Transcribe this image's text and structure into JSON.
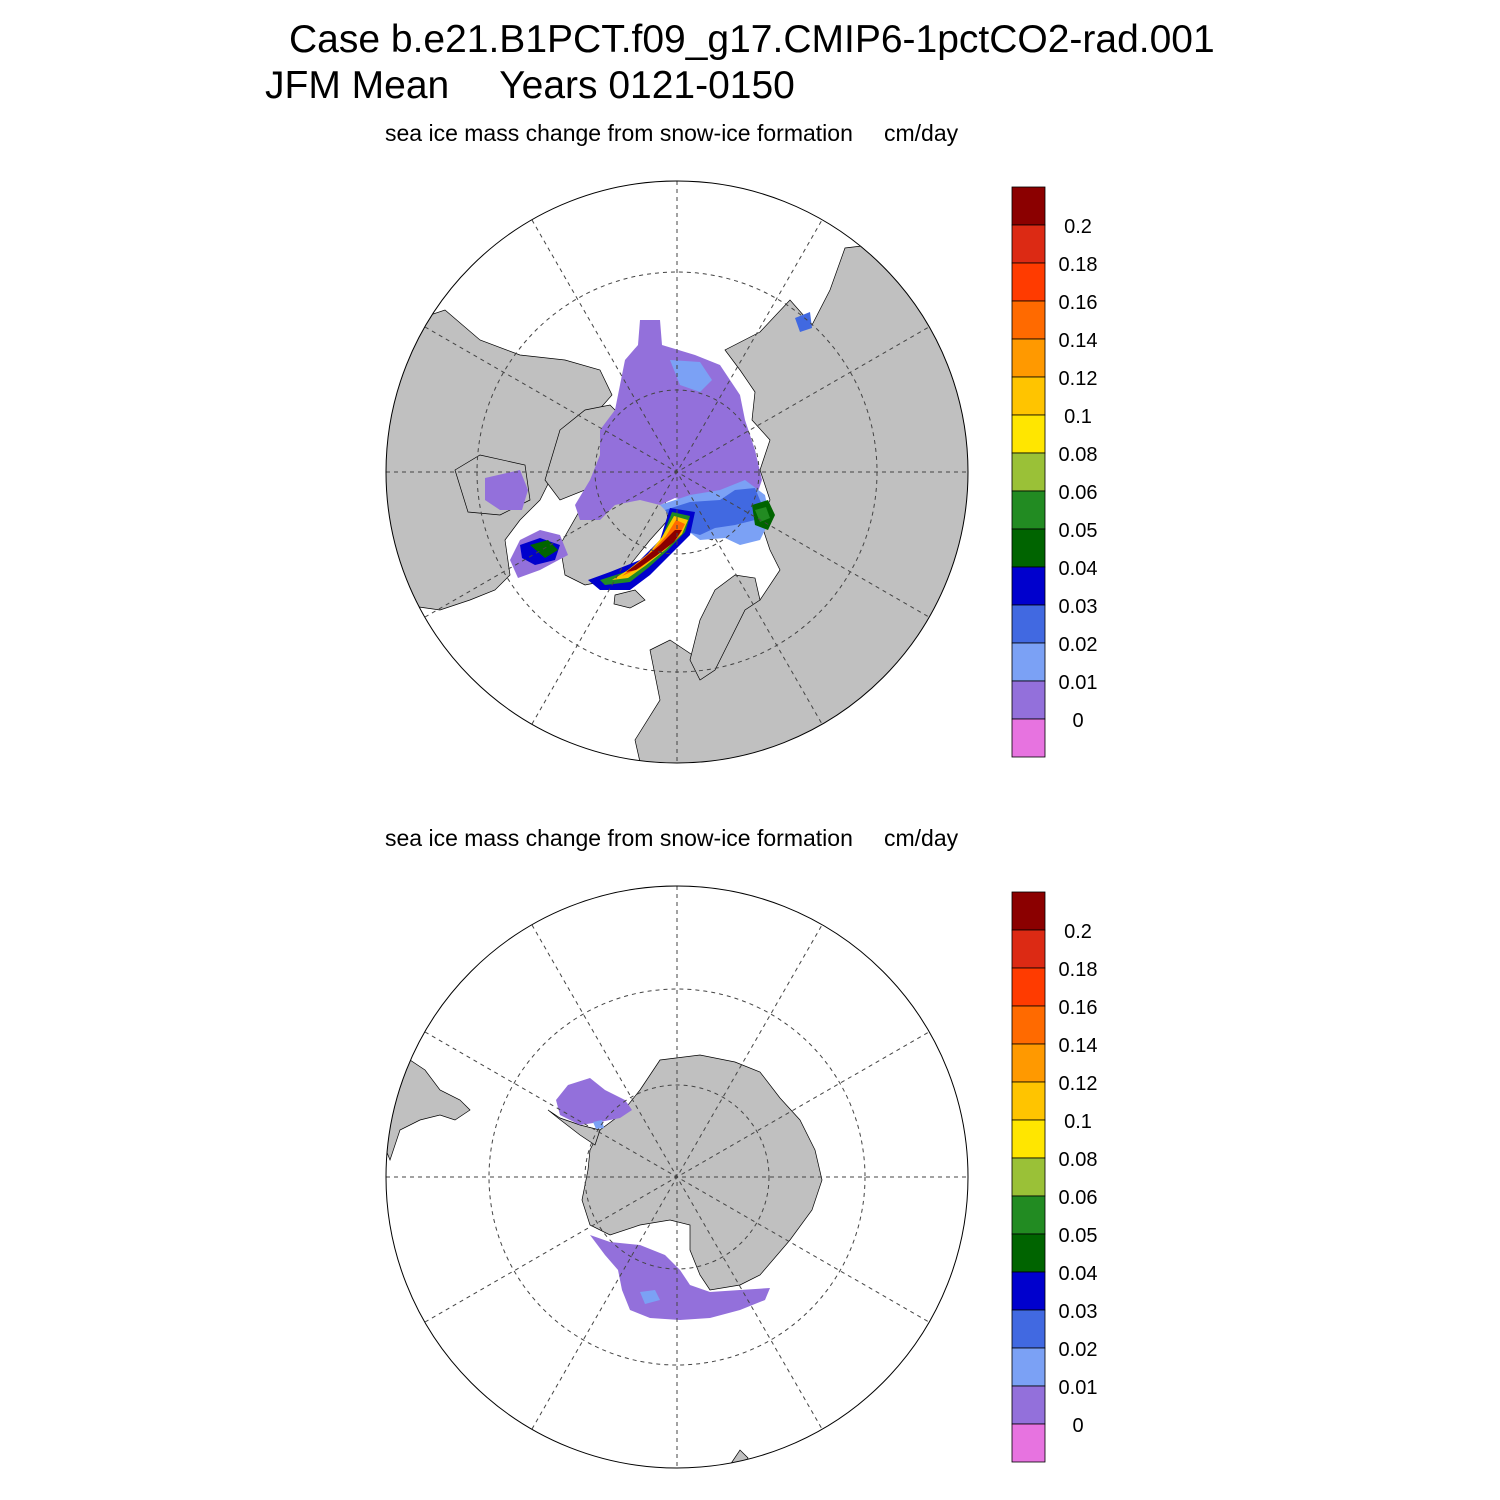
{
  "title": {
    "line1": "Case b.e21.B1PCT.f09_g17.CMIP6-1pctCO2-rad.001",
    "season": "JFM Mean",
    "years": "Years 0121-0150"
  },
  "colorbar": {
    "levels": [
      "0.2",
      "0.18",
      "0.16",
      "0.14",
      "0.12",
      "0.1",
      "0.08",
      "0.06",
      "0.05",
      "0.04",
      "0.03",
      "0.02",
      "0.01",
      "0"
    ],
    "colors": [
      "#8b0000",
      "#dc2a14",
      "#ff3b00",
      "#ff6a00",
      "#ff9900",
      "#ffc400",
      "#ffe600",
      "#9ac137",
      "#228b22",
      "#006400",
      "#0000cd",
      "#4169e1",
      "#7ba1f5",
      "#9370db",
      "#e773e0"
    ]
  },
  "panels": [
    {
      "id": "north",
      "hemisphere": "Northern Hemisphere",
      "label": "sea ice mass change from snow-ice formation",
      "units": "cm/day",
      "land_color": "#c0c0c0"
    },
    {
      "id": "south",
      "hemisphere": "Southern Hemisphere",
      "label": "sea ice mass change from snow-ice formation",
      "units": "cm/day",
      "land_color": "#c0c0c0"
    }
  ]
}
